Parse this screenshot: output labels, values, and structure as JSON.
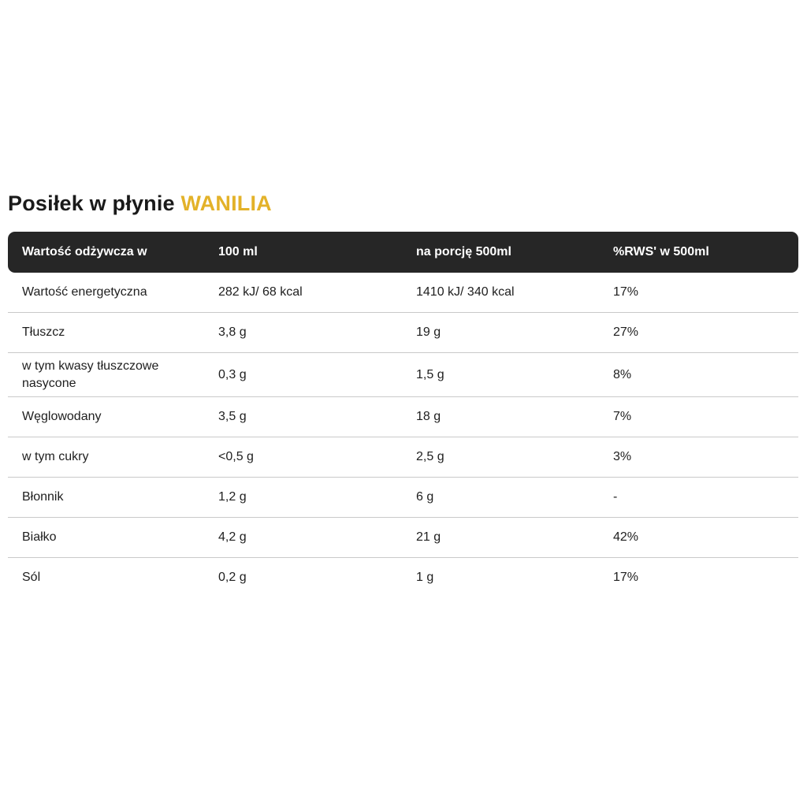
{
  "page": {
    "title_main": "Posiłek w płynie",
    "title_accent": "WANILIA",
    "accent_color": "#E3B229",
    "header_bg": "#262626",
    "header_text_color": "#ffffff",
    "divider_color": "#c9c9c9",
    "body_text_color": "#1e1e1e"
  },
  "table": {
    "columns": [
      "Wartość odżywcza w",
      "100 ml",
      "na porcję 500ml",
      "%RWS' w 500ml"
    ],
    "rows": [
      {
        "label": "Wartość energetyczna",
        "per100": "282 kJ/ 68 kcal",
        "portion": "1410 kJ/ 340 kcal",
        "rws": "17%"
      },
      {
        "label": "Tłuszcz",
        "per100": "3,8 g",
        "portion": "19 g",
        "rws": "27%"
      },
      {
        "label": "w tym kwasy tłuszczowe nasycone",
        "per100": "0,3 g",
        "portion": "1,5 g",
        "rws": "8%"
      },
      {
        "label": "Węglowodany",
        "per100": "3,5 g",
        "portion": "18 g",
        "rws": "7%"
      },
      {
        "label": "w tym cukry",
        "per100": "<0,5 g",
        "portion": "2,5 g",
        "rws": "3%"
      },
      {
        "label": "Błonnik",
        "per100": "1,2 g",
        "portion": "6 g",
        "rws": "-"
      },
      {
        "label": "Białko",
        "per100": "4,2 g",
        "portion": "21 g",
        "rws": "42%"
      },
      {
        "label": "Sól",
        "per100": "0,2 g",
        "portion": "1 g",
        "rws": "17%"
      }
    ]
  }
}
